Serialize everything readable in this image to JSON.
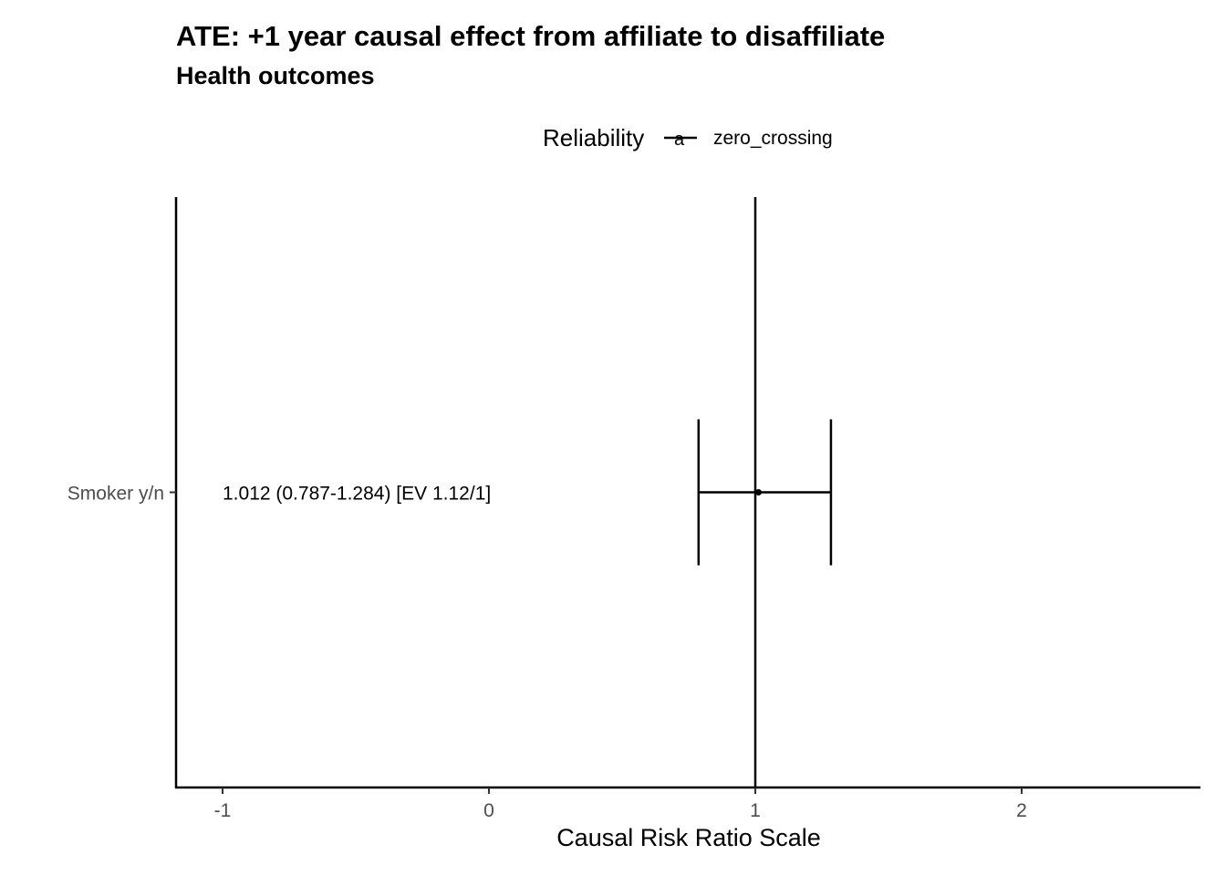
{
  "chart_data": {
    "type": "forest",
    "title": "ATE: +1 year causal effect from affiliate to disaffiliate",
    "subtitle": "Health outcomes",
    "xlabel": "Causal Risk Ratio Scale",
    "ylabel": "",
    "xlim": [
      -1.17,
      2.68
    ],
    "xticks": [
      -1,
      0,
      1,
      2
    ],
    "reference_line": 1,
    "legend": {
      "title": "Reliability",
      "position": "top",
      "key_glyph": "a",
      "entries": [
        "zero_crossing"
      ]
    },
    "rows": [
      {
        "label": "Smoker y/n",
        "estimate": 1.012,
        "lower": 0.787,
        "upper": 1.284,
        "annotation": "1.012 (0.787-1.284) [EV 1.12/1]",
        "annotation_x": -1,
        "reliability": "zero_crossing"
      }
    ],
    "grid": false,
    "colors": {
      "series": "#000000",
      "axis": "#000000",
      "tick_text": "#4d4d4d"
    }
  }
}
